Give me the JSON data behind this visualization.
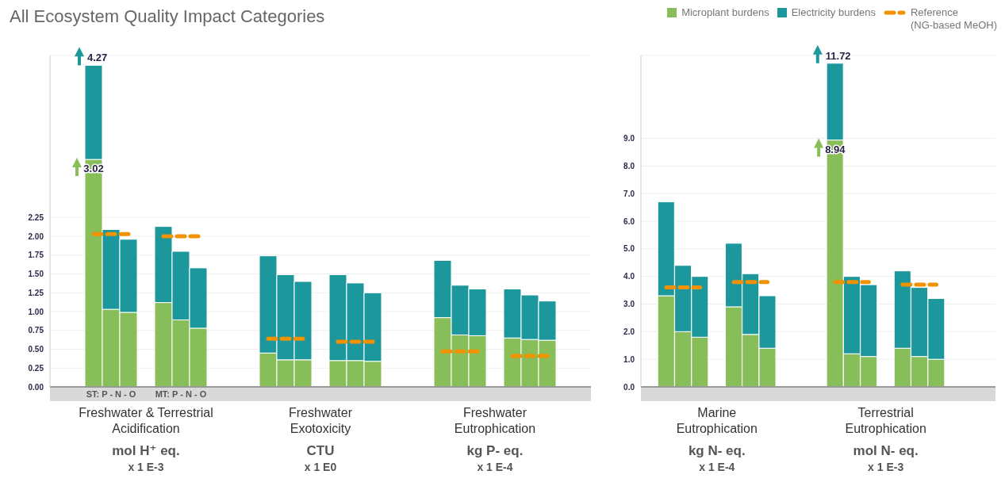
{
  "chart_data": [
    {
      "type": "bar",
      "title": "All Ecosystem Quality Impact Categories",
      "stacked": true,
      "grid": "y",
      "legend": false,
      "categories": [
        null,
        null,
        null,
        null,
        null,
        "Freshwater & Terrestrial\nAcidification\nmol H⁺ eq.\nx 1 E-3",
        null,
        null,
        null,
        null,
        null,
        null,
        null,
        null,
        null,
        "Freshwater\nExotoxicity\nCTU\nx 1 E0",
        null,
        null,
        null,
        null,
        null,
        null,
        null,
        null,
        null,
        "Freshwater\nEutrophication\nkg P- eq.\nx 1 E-4",
        null,
        null,
        null,
        null,
        null
      ],
      "ylim": [
        0,
        4.4
      ],
      "yticks": [
        {
          "value": 0,
          "label": "0.00"
        },
        {
          "value": 0.25,
          "label": "0.25"
        },
        {
          "value": 0.5,
          "label": "0.50"
        },
        {
          "value": 0.75,
          "label": "0.75"
        },
        {
          "value": 1,
          "label": "1.00"
        },
        {
          "value": 1.25,
          "label": "1.25"
        },
        {
          "value": 1.5,
          "label": "1.50"
        },
        {
          "value": 1.75,
          "label": "1.75"
        },
        {
          "value": 2,
          "label": "2.00"
        },
        {
          "value": 2.25,
          "label": "2.25"
        }
      ],
      "series": [
        {
          "color": "#88be5a",
          "values": [
            null,
            null,
            3.02,
            1.03,
            0.99,
            null,
            1.12,
            0.89,
            0.78,
            null,
            null,
            null,
            0.45,
            0.36,
            0.36,
            null,
            0.35,
            0.35,
            0.34,
            null,
            null,
            null,
            0.92,
            0.69,
            0.68,
            null,
            0.65,
            0.63,
            0.62,
            null,
            null
          ],
          "value_labels": [
            null,
            null,
            "3.02",
            null,
            null,
            null,
            null,
            null,
            null,
            null,
            null,
            null,
            null,
            null,
            null,
            null,
            null,
            null,
            null,
            null,
            null,
            null,
            null,
            null,
            null,
            null,
            null,
            null,
            null,
            null,
            null
          ]
        },
        {
          "color": "#1c979b",
          "values": [
            null,
            null,
            1.25,
            1.06,
            0.97,
            null,
            1.01,
            0.91,
            0.8,
            null,
            null,
            null,
            1.29,
            1.13,
            1.04,
            null,
            1.14,
            1.03,
            0.91,
            null,
            null,
            null,
            0.76,
            0.66,
            0.62,
            null,
            0.65,
            0.59,
            0.52,
            null,
            null
          ]
        },
        {
          "type": "line",
          "color": "#f39200",
          "line_style": "dashed",
          "values": [
            null,
            null,
            2.03,
            2.03,
            2.03,
            null,
            2.0,
            2.0,
            2.0,
            null,
            null,
            null,
            0.64,
            0.64,
            0.64,
            null,
            0.6,
            0.6,
            0.6,
            null,
            null,
            null,
            0.47,
            0.47,
            0.47,
            null,
            0.41,
            0.41,
            0.41,
            null,
            null
          ]
        }
      ],
      "totals": [
        null,
        null,
        "4.27",
        null,
        null,
        null,
        null,
        null,
        null,
        null,
        null,
        null,
        null,
        null,
        null,
        null,
        null,
        null,
        null,
        null,
        null,
        null,
        null,
        null,
        null,
        null,
        null,
        null,
        null,
        null,
        null
      ],
      "annotations": [
        "ST: P - N - O",
        "MT: P - N - O"
      ]
    },
    {
      "type": "bar",
      "stacked": true,
      "grid": "y",
      "legend": "top right",
      "categories": [
        null,
        null,
        null,
        null,
        "Marine\nEutrophication\nkg N- eq.\nx 1 E-4",
        null,
        null,
        null,
        null,
        null,
        null,
        null,
        null,
        null,
        "Terrestrial\nEutrophication\nmol N- eq.\nx 1 E-3",
        null,
        null,
        null,
        null,
        null,
        null
      ],
      "ylim": [
        0,
        12
      ],
      "yticks": [
        {
          "value": 0,
          "label": "0.0"
        },
        {
          "value": 1,
          "label": "1.0"
        },
        {
          "value": 2,
          "label": "2.0"
        },
        {
          "value": 3,
          "label": "3.0"
        },
        {
          "value": 4,
          "label": "4.0"
        },
        {
          "value": 5,
          "label": "5.0"
        },
        {
          "value": 6,
          "label": "6.0"
        },
        {
          "value": 7,
          "label": "7.0"
        },
        {
          "value": 8,
          "label": "8.0"
        },
        {
          "value": 9,
          "label": "9.0"
        }
      ],
      "series": [
        {
          "name": "Microplant burdens",
          "color": "#88be5a",
          "values": [
            null,
            3.3,
            2.0,
            1.8,
            null,
            2.9,
            1.9,
            1.4,
            null,
            null,
            null,
            8.94,
            1.2,
            1.1,
            null,
            1.4,
            1.1,
            1.0,
            null,
            null,
            null
          ],
          "value_labels": [
            null,
            null,
            null,
            null,
            null,
            null,
            null,
            null,
            null,
            null,
            null,
            "8.94",
            null,
            null,
            null,
            null,
            null,
            null,
            null,
            null,
            null
          ]
        },
        {
          "name": "Electricity burdens",
          "color": "#1c979b",
          "values": [
            null,
            3.4,
            2.4,
            2.2,
            null,
            2.3,
            2.2,
            1.9,
            null,
            null,
            null,
            2.78,
            2.8,
            2.6,
            null,
            2.8,
            2.5,
            2.2,
            null,
            null,
            null
          ]
        },
        {
          "name": "Reference\n(NG-based MeOH)",
          "type": "line",
          "color": "#f39200",
          "line_style": "dashed",
          "values": [
            null,
            3.6,
            3.6,
            3.6,
            null,
            3.8,
            3.8,
            3.8,
            null,
            null,
            null,
            3.8,
            3.8,
            3.8,
            null,
            3.7,
            3.7,
            3.7,
            null,
            null,
            null
          ]
        }
      ],
      "totals": [
        null,
        null,
        null,
        null,
        null,
        null,
        null,
        null,
        null,
        null,
        null,
        "11.72",
        null,
        null,
        null,
        null,
        null,
        null,
        null,
        null,
        null
      ]
    }
  ]
}
